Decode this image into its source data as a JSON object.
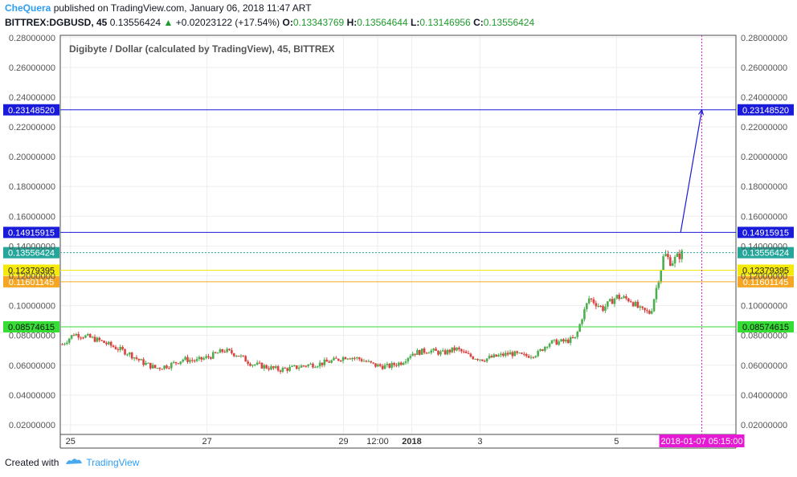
{
  "header": {
    "author": "CheQuera",
    "published_text": " published on TradingView.com, January 06, 2018 11:47 ART",
    "symbol": "BITTREX:DGBUSD, 45",
    "last": "0.13556424",
    "change_arrow": "▲",
    "change": "+0.02023122 (+17.54%)",
    "o_label": "O:",
    "o_value": "0.13343769",
    "h_label": "H:",
    "h_value": "0.13564644",
    "l_label": "L:",
    "l_value": "0.13146956",
    "c_label": "C:",
    "c_value": "0.13556424"
  },
  "footer": {
    "created_with": "Created with",
    "brand": "TradingView"
  },
  "colors": {
    "up": "#4caf50",
    "down": "#e0403f",
    "grid": "#eeeeee",
    "blue_line": "#1a1adb",
    "yellow_line": "#f5e90a",
    "orange_line": "#f5a623",
    "green_line": "#35dd35",
    "magenta": "#e619d4",
    "price_line": "#26a69a"
  },
  "chart_data": {
    "type": "candlestick",
    "title": "Digibyte / Dollar (calculated by TradingView), 45, BITTREX",
    "y_ticks": [
      "0.28000000",
      "0.26000000",
      "0.24000000",
      "0.22000000",
      "0.20000000",
      "0.18000000",
      "0.16000000",
      "0.14000000",
      "0.12000000",
      "0.10000000",
      "0.08000000",
      "0.06000000",
      "0.04000000",
      "0.02000000"
    ],
    "y_tick_values": [
      0.28,
      0.26,
      0.24,
      0.22,
      0.2,
      0.18,
      0.16,
      0.14,
      0.12,
      0.1,
      0.08,
      0.06,
      0.04,
      0.02
    ],
    "ylim": [
      0.0135,
      0.2815
    ],
    "x_ticks": [
      {
        "label": "25",
        "t": 0.5
      },
      {
        "label": "27",
        "t": 2.5
      },
      {
        "label": "29",
        "t": 4.5
      },
      {
        "label": "12:00",
        "t": 5.0
      },
      {
        "label": "2018",
        "t": 5.5,
        "bold": true
      },
      {
        "label": "3",
        "t": 6.5
      },
      {
        "label": "5",
        "t": 8.5
      }
    ],
    "xlim": [
      0.35,
      10.25
    ],
    "horizontal_lines": [
      {
        "value": 0.2314852,
        "label": "0.23148520",
        "kind": "blue"
      },
      {
        "value": 0.14915915,
        "label": "0.14915915",
        "kind": "blue"
      },
      {
        "value": 0.13556424,
        "label": "0.13556424",
        "kind": "price"
      },
      {
        "value": 0.12379395,
        "label": "0.12379395",
        "kind": "yellow"
      },
      {
        "value": 0.11601145,
        "label": "0.11601145",
        "kind": "orange"
      },
      {
        "value": 0.08574615,
        "label": "0.08574615",
        "kind": "green"
      }
    ],
    "vertical_marker": {
      "t": 9.75,
      "label": "2018-01-07 05:15:00"
    },
    "projection_arrow": {
      "from": {
        "t": 9.44,
        "value": 0.1493
      },
      "to": {
        "t": 9.75,
        "value": 0.2315
      }
    },
    "price_path": [
      [
        0.38,
        0.074
      ],
      [
        0.55,
        0.081
      ],
      [
        0.75,
        0.079
      ],
      [
        0.95,
        0.076
      ],
      [
        1.15,
        0.072
      ],
      [
        1.35,
        0.068
      ],
      [
        1.55,
        0.062
      ],
      [
        1.75,
        0.058
      ],
      [
        1.95,
        0.06
      ],
      [
        2.15,
        0.064
      ],
      [
        2.35,
        0.063
      ],
      [
        2.55,
        0.066
      ],
      [
        2.75,
        0.07
      ],
      [
        2.95,
        0.067
      ],
      [
        3.15,
        0.061
      ],
      [
        3.35,
        0.059
      ],
      [
        3.55,
        0.057
      ],
      [
        3.75,
        0.058
      ],
      [
        3.95,
        0.06
      ],
      [
        4.15,
        0.061
      ],
      [
        4.35,
        0.063
      ],
      [
        4.55,
        0.066
      ],
      [
        4.75,
        0.064
      ],
      [
        4.95,
        0.06
      ],
      [
        5.15,
        0.059
      ],
      [
        5.35,
        0.062
      ],
      [
        5.5,
        0.068
      ],
      [
        5.75,
        0.07
      ],
      [
        5.95,
        0.068
      ],
      [
        6.15,
        0.071
      ],
      [
        6.35,
        0.066
      ],
      [
        6.55,
        0.064
      ],
      [
        6.75,
        0.066
      ],
      [
        6.95,
        0.068
      ],
      [
        7.15,
        0.066
      ],
      [
        7.35,
        0.068
      ],
      [
        7.5,
        0.075
      ],
      [
        7.75,
        0.076
      ],
      [
        7.9,
        0.078
      ],
      [
        8.0,
        0.093
      ],
      [
        8.1,
        0.105
      ],
      [
        8.3,
        0.098
      ],
      [
        8.5,
        0.106
      ],
      [
        8.7,
        0.104
      ],
      [
        8.85,
        0.097
      ],
      [
        9.0,
        0.095
      ],
      [
        9.1,
        0.115
      ],
      [
        9.2,
        0.135
      ],
      [
        9.3,
        0.129
      ],
      [
        9.4,
        0.133
      ],
      [
        9.48,
        0.1356
      ]
    ]
  }
}
